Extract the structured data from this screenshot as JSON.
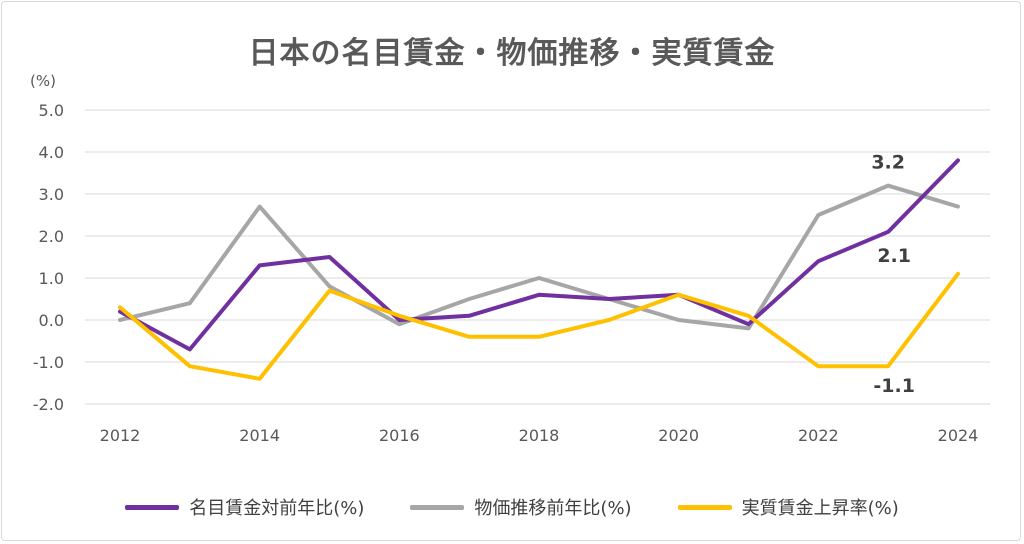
{
  "chart_data": {
    "type": "line",
    "title": "日本の名目賃金・物価推移・実質賃金",
    "unit_label": "(%)",
    "x": [
      2012,
      2013,
      2014,
      2015,
      2016,
      2017,
      2018,
      2019,
      2020,
      2021,
      2022,
      2023,
      2024
    ],
    "x_tick_labels": [
      "2012",
      "2014",
      "2016",
      "2018",
      "2020",
      "2022",
      "2024"
    ],
    "y_tick_labels": [
      "5.0",
      "4.0",
      "3.0",
      "2.0",
      "1.0",
      "0.0",
      "-1.0",
      "-2.0"
    ],
    "ylim": [
      -2,
      5
    ],
    "grid": true,
    "legend_position": "bottom",
    "series": [
      {
        "name": "名目賃金対前年比(%)",
        "color": "#7030a0",
        "values": [
          0.2,
          -0.7,
          1.3,
          1.5,
          0.0,
          0.1,
          0.6,
          0.5,
          0.6,
          -0.1,
          1.4,
          2.1,
          3.8
        ]
      },
      {
        "name": "物価推移前年比(%)",
        "color": "#a6a6a6",
        "values": [
          0.0,
          0.4,
          2.7,
          0.8,
          -0.1,
          0.5,
          1.0,
          0.5,
          0.0,
          -0.2,
          2.5,
          3.2,
          2.7
        ]
      },
      {
        "name": "実質賃金上昇率(%)",
        "color": "#ffc000",
        "values": [
          0.3,
          -1.1,
          -1.4,
          0.7,
          0.1,
          -0.4,
          -0.4,
          0.0,
          0.6,
          0.1,
          -1.1,
          -1.1,
          1.1
        ]
      }
    ],
    "annotations": [
      {
        "text": "3.2",
        "series": 1,
        "index": 11
      },
      {
        "text": "2.1",
        "series": 0,
        "index": 11
      },
      {
        "text": "-1.1",
        "series": 2,
        "index": 11
      }
    ]
  }
}
